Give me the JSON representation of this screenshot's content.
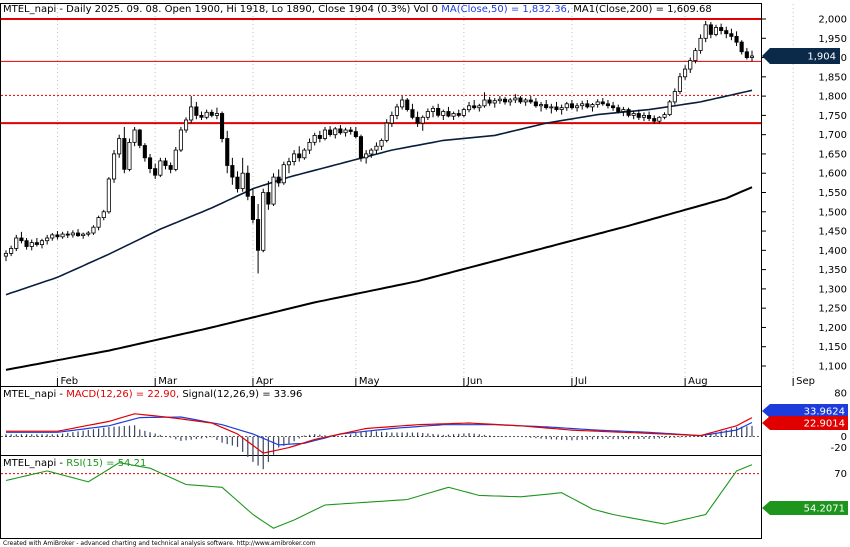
{
  "header": {
    "price": {
      "lead": "MTEL_napi - Daily 2025. 09. 08. Open 1900, Hi 1918, Lo 1890, Close 1904 (0.3%) Vol 0 ",
      "ma50": "MA(Close,50) = 1,832.36,",
      "ma200": " MA1(Close,200) = 1,609.68"
    },
    "macd": {
      "lead": "MTEL_napi - ",
      "macd": "MACD(12,26) = 22.90,",
      "signal": " Signal(12,26,9) = 33.96"
    },
    "rsi": {
      "lead": "MTEL_napi - ",
      "rsi": "RSI(15) = 54.21"
    }
  },
  "footer": "Created with AmiBroker - advanced charting and technical analysis software. http://www.amibroker.com",
  "colors": {
    "up": "#ffffff",
    "down": "#000000",
    "ma50": "#0a1e3c",
    "ma200": "#000000",
    "hline": "#e00000",
    "macd": "#e00000",
    "signal": "#1e3cdc",
    "rsi": "#1e961e",
    "badge_price": "#0b2a4a",
    "badge_macd_signal": "#1e3cdc",
    "badge_macd": "#e00000",
    "badge_rsi": "#1e961e"
  },
  "chart_data": [
    {
      "type": "candlestick",
      "title": "MTEL_napi - Daily 2025. 09. 08.",
      "ylim": [
        1070,
        2020
      ],
      "y_ticks": [
        "2,000",
        "1,950",
        "1,900",
        "1,850",
        "1,800",
        "1,750",
        "1,700",
        "1,650",
        "1,600",
        "1,550",
        "1,500",
        "1,450",
        "1,400",
        "1,350",
        "1,300",
        "1,250",
        "1,200",
        "1,150",
        "1,100"
      ],
      "x_ticks": [
        {
          "label": "Feb",
          "index": 10
        },
        {
          "label": "Mar",
          "index": 29
        },
        {
          "label": "Apr",
          "index": 48
        },
        {
          "label": "May",
          "index": 68
        },
        {
          "label": "Jun",
          "index": 89
        },
        {
          "label": "Jul",
          "index": 110
        },
        {
          "label": "Aug",
          "index": 132
        },
        {
          "label": "Sep",
          "index": 153
        }
      ],
      "ohlc": [
        [
          1385,
          1400,
          1372,
          1392
        ],
        [
          1392,
          1412,
          1385,
          1405
        ],
        [
          1405,
          1440,
          1398,
          1432
        ],
        [
          1432,
          1448,
          1418,
          1425
        ],
        [
          1425,
          1432,
          1402,
          1410
        ],
        [
          1410,
          1428,
          1400,
          1420
        ],
        [
          1420,
          1432,
          1410,
          1415
        ],
        [
          1415,
          1430,
          1405,
          1425
        ],
        [
          1425,
          1440,
          1415,
          1432
        ],
        [
          1432,
          1445,
          1425,
          1440
        ],
        [
          1440,
          1450,
          1428,
          1435
        ],
        [
          1435,
          1448,
          1430,
          1442
        ],
        [
          1442,
          1450,
          1432,
          1440
        ],
        [
          1440,
          1452,
          1433,
          1445
        ],
        [
          1445,
          1455,
          1435,
          1438
        ],
        [
          1438,
          1446,
          1430,
          1442
        ],
        [
          1442,
          1450,
          1436,
          1445
        ],
        [
          1445,
          1465,
          1440,
          1460
        ],
        [
          1460,
          1490,
          1452,
          1485
        ],
        [
          1485,
          1505,
          1478,
          1500
        ],
        [
          1500,
          1590,
          1495,
          1585
        ],
        [
          1585,
          1660,
          1575,
          1650
        ],
        [
          1650,
          1700,
          1640,
          1690
        ],
        [
          1690,
          1720,
          1600,
          1610
        ],
        [
          1610,
          1690,
          1605,
          1680
        ],
        [
          1680,
          1720,
          1670,
          1712
        ],
        [
          1712,
          1715,
          1665,
          1672
        ],
        [
          1672,
          1678,
          1630,
          1640
        ],
        [
          1640,
          1650,
          1600,
          1612
        ],
        [
          1612,
          1625,
          1585,
          1595
        ],
        [
          1595,
          1640,
          1590,
          1632
        ],
        [
          1632,
          1640,
          1610,
          1620
        ],
        [
          1620,
          1628,
          1600,
          1610
        ],
        [
          1610,
          1668,
          1605,
          1660
        ],
        [
          1660,
          1720,
          1655,
          1712
        ],
        [
          1712,
          1745,
          1705,
          1738
        ],
        [
          1738,
          1800,
          1730,
          1772
        ],
        [
          1772,
          1785,
          1740,
          1750
        ],
        [
          1750,
          1760,
          1738,
          1745
        ],
        [
          1745,
          1765,
          1740,
          1758
        ],
        [
          1758,
          1765,
          1745,
          1750
        ],
        [
          1750,
          1770,
          1740,
          1755
        ],
        [
          1755,
          1760,
          1680,
          1690
        ],
        [
          1690,
          1710,
          1600,
          1620
        ],
        [
          1620,
          1640,
          1570,
          1590
        ],
        [
          1590,
          1605,
          1550,
          1560
        ],
        [
          1560,
          1640,
          1552,
          1600
        ],
        [
          1600,
          1620,
          1530,
          1540
        ],
        [
          1540,
          1560,
          1470,
          1480
        ],
        [
          1480,
          1520,
          1340,
          1400
        ],
        [
          1400,
          1560,
          1395,
          1550
        ],
        [
          1550,
          1580,
          1505,
          1520
        ],
        [
          1520,
          1600,
          1515,
          1590
        ],
        [
          1590,
          1610,
          1565,
          1575
        ],
        [
          1575,
          1630,
          1570,
          1622
        ],
        [
          1622,
          1640,
          1600,
          1630
        ],
        [
          1630,
          1660,
          1620,
          1650
        ],
        [
          1650,
          1670,
          1630,
          1640
        ],
        [
          1640,
          1665,
          1635,
          1660
        ],
        [
          1660,
          1690,
          1650,
          1680
        ],
        [
          1680,
          1705,
          1672,
          1698
        ],
        [
          1698,
          1710,
          1680,
          1690
        ],
        [
          1690,
          1720,
          1685,
          1712
        ],
        [
          1712,
          1722,
          1695,
          1700
        ],
        [
          1700,
          1720,
          1690,
          1715
        ],
        [
          1715,
          1725,
          1700,
          1705
        ],
        [
          1705,
          1718,
          1695,
          1712
        ],
        [
          1712,
          1720,
          1700,
          1708
        ],
        [
          1708,
          1720,
          1690,
          1695
        ],
        [
          1695,
          1700,
          1630,
          1640
        ],
        [
          1640,
          1660,
          1625,
          1650
        ],
        [
          1650,
          1665,
          1640,
          1660
        ],
        [
          1660,
          1680,
          1650,
          1670
        ],
        [
          1670,
          1690,
          1660,
          1685
        ],
        [
          1685,
          1740,
          1680,
          1730
        ],
        [
          1730,
          1760,
          1720,
          1750
        ],
        [
          1750,
          1780,
          1740,
          1772
        ],
        [
          1772,
          1800,
          1765,
          1790
        ],
        [
          1790,
          1795,
          1760,
          1765
        ],
        [
          1765,
          1780,
          1740,
          1745
        ],
        [
          1745,
          1760,
          1720,
          1730
        ],
        [
          1730,
          1750,
          1710,
          1745
        ],
        [
          1745,
          1768,
          1738,
          1760
        ],
        [
          1760,
          1775,
          1745,
          1768
        ],
        [
          1768,
          1780,
          1745,
          1750
        ],
        [
          1750,
          1765,
          1738,
          1760
        ],
        [
          1760,
          1772,
          1745,
          1748
        ],
        [
          1748,
          1760,
          1738,
          1755
        ],
        [
          1755,
          1765,
          1745,
          1750
        ],
        [
          1750,
          1770,
          1745,
          1765
        ],
        [
          1765,
          1785,
          1758,
          1775
        ],
        [
          1775,
          1790,
          1765,
          1770
        ],
        [
          1770,
          1780,
          1760,
          1775
        ],
        [
          1775,
          1810,
          1770,
          1790
        ],
        [
          1790,
          1798,
          1775,
          1782
        ],
        [
          1782,
          1795,
          1770,
          1788
        ],
        [
          1788,
          1800,
          1780,
          1792
        ],
        [
          1792,
          1798,
          1778,
          1785
        ],
        [
          1785,
          1795,
          1775,
          1790
        ],
        [
          1790,
          1805,
          1782,
          1795
        ],
        [
          1795,
          1800,
          1780,
          1785
        ],
        [
          1785,
          1795,
          1775,
          1790
        ],
        [
          1790,
          1800,
          1780,
          1785
        ],
        [
          1785,
          1795,
          1770,
          1775
        ],
        [
          1775,
          1785,
          1760,
          1778
        ],
        [
          1778,
          1790,
          1765,
          1770
        ],
        [
          1770,
          1780,
          1755,
          1772
        ],
        [
          1772,
          1785,
          1760,
          1765
        ],
        [
          1765,
          1778,
          1752,
          1770
        ],
        [
          1770,
          1785,
          1762,
          1780
        ],
        [
          1780,
          1790,
          1765,
          1770
        ],
        [
          1770,
          1782,
          1760,
          1775
        ],
        [
          1775,
          1788,
          1765,
          1780
        ],
        [
          1780,
          1790,
          1768,
          1772
        ],
        [
          1772,
          1782,
          1760,
          1778
        ],
        [
          1778,
          1792,
          1770,
          1785
        ],
        [
          1785,
          1795,
          1775,
          1780
        ],
        [
          1780,
          1790,
          1768,
          1775
        ],
        [
          1775,
          1785,
          1762,
          1770
        ],
        [
          1770,
          1778,
          1755,
          1760
        ],
        [
          1760,
          1772,
          1748,
          1765
        ],
        [
          1765,
          1770,
          1745,
          1750
        ],
        [
          1750,
          1762,
          1740,
          1755
        ],
        [
          1755,
          1765,
          1738,
          1745
        ],
        [
          1745,
          1758,
          1735,
          1750
        ],
        [
          1750,
          1760,
          1735,
          1742
        ],
        [
          1742,
          1750,
          1728,
          1735
        ],
        [
          1735,
          1748,
          1728,
          1745
        ],
        [
          1745,
          1758,
          1740,
          1752
        ],
        [
          1752,
          1790,
          1748,
          1785
        ],
        [
          1785,
          1820,
          1778,
          1812
        ],
        [
          1812,
          1860,
          1805,
          1850
        ],
        [
          1850,
          1880,
          1842,
          1870
        ],
        [
          1870,
          1900,
          1860,
          1892
        ],
        [
          1892,
          1925,
          1885,
          1918
        ],
        [
          1918,
          1960,
          1910,
          1950
        ],
        [
          1950,
          1995,
          1940,
          1985
        ],
        [
          1985,
          1992,
          1950,
          1960
        ],
        [
          1960,
          1985,
          1955,
          1978
        ],
        [
          1978,
          1988,
          1960,
          1970
        ],
        [
          1970,
          1980,
          1950,
          1962
        ],
        [
          1962,
          1975,
          1945,
          1955
        ],
        [
          1955,
          1968,
          1930,
          1940
        ],
        [
          1940,
          1945,
          1908,
          1915
        ],
        [
          1915,
          1925,
          1895,
          1900
        ],
        [
          1900,
          1918,
          1890,
          1904
        ]
      ],
      "series": [
        {
          "name": "MA(Close,50)",
          "values": []
        },
        {
          "name": "MA1(Close,200)",
          "values": []
        }
      ],
      "ma50_anchors": [
        [
          0,
          1285
        ],
        [
          10,
          1330
        ],
        [
          20,
          1390
        ],
        [
          30,
          1455
        ],
        [
          40,
          1510
        ],
        [
          48,
          1560
        ],
        [
          55,
          1590
        ],
        [
          65,
          1625
        ],
        [
          75,
          1660
        ],
        [
          85,
          1685
        ],
        [
          95,
          1698
        ],
        [
          105,
          1730
        ],
        [
          115,
          1752
        ],
        [
          125,
          1765
        ],
        [
          135,
          1785
        ],
        [
          145,
          1815
        ],
        [
          153,
          1832
        ]
      ],
      "ma200_anchors": [
        [
          0,
          1090
        ],
        [
          20,
          1140
        ],
        [
          40,
          1200
        ],
        [
          60,
          1265
        ],
        [
          80,
          1320
        ],
        [
          100,
          1390
        ],
        [
          120,
          1460
        ],
        [
          140,
          1535
        ],
        [
          153,
          1610
        ]
      ],
      "hlines": [
        2000,
        1890,
        1730
      ],
      "dotted_hline": 1802,
      "last_price_label": "1,904"
    },
    {
      "type": "line",
      "title": "MACD(12,26) / Signal(12,26,9)",
      "ylim": [
        -28,
        80
      ],
      "y_ticks": [
        "80",
        "40",
        "20",
        "0",
        "-20"
      ],
      "macd_anchors": [
        [
          0,
          10
        ],
        [
          10,
          10
        ],
        [
          20,
          28
        ],
        [
          25,
          42
        ],
        [
          32,
          35
        ],
        [
          40,
          25
        ],
        [
          45,
          5
        ],
        [
          50,
          -30
        ],
        [
          55,
          -20
        ],
        [
          60,
          -5
        ],
        [
          70,
          15
        ],
        [
          80,
          22
        ],
        [
          90,
          25
        ],
        [
          100,
          20
        ],
        [
          110,
          12
        ],
        [
          120,
          8
        ],
        [
          128,
          5
        ],
        [
          135,
          2
        ],
        [
          142,
          20
        ],
        [
          148,
          50
        ],
        [
          153,
          23
        ]
      ],
      "signal_anchors": [
        [
          0,
          8
        ],
        [
          10,
          8
        ],
        [
          20,
          20
        ],
        [
          26,
          35
        ],
        [
          34,
          36
        ],
        [
          42,
          22
        ],
        [
          48,
          5
        ],
        [
          53,
          -15
        ],
        [
          58,
          -12
        ],
        [
          65,
          5
        ],
        [
          75,
          15
        ],
        [
          85,
          22
        ],
        [
          95,
          22
        ],
        [
          105,
          18
        ],
        [
          115,
          12
        ],
        [
          125,
          8
        ],
        [
          135,
          2
        ],
        [
          142,
          12
        ],
        [
          148,
          40
        ],
        [
          153,
          34
        ]
      ],
      "macd_last_label": "22.9014",
      "signal_last_label": "33.9624"
    },
    {
      "type": "line",
      "title": "RSI(15)",
      "ylim": [
        25,
        80
      ],
      "y_ticks": [
        "70"
      ],
      "overbought": 70,
      "rsi_anchors": [
        [
          0,
          65
        ],
        [
          8,
          72
        ],
        [
          16,
          64
        ],
        [
          22,
          78
        ],
        [
          28,
          74
        ],
        [
          35,
          62
        ],
        [
          42,
          60
        ],
        [
          48,
          40
        ],
        [
          52,
          30
        ],
        [
          56,
          36
        ],
        [
          62,
          47
        ],
        [
          70,
          49
        ],
        [
          78,
          51
        ],
        [
          86,
          60
        ],
        [
          92,
          54
        ],
        [
          100,
          53
        ],
        [
          108,
          56
        ],
        [
          114,
          44
        ],
        [
          118,
          40
        ],
        [
          128,
          33
        ],
        [
          136,
          40
        ],
        [
          142,
          72
        ],
        [
          146,
          78
        ],
        [
          150,
          60
        ],
        [
          153,
          54
        ]
      ],
      "rsi_last_label": "54.2071"
    }
  ]
}
